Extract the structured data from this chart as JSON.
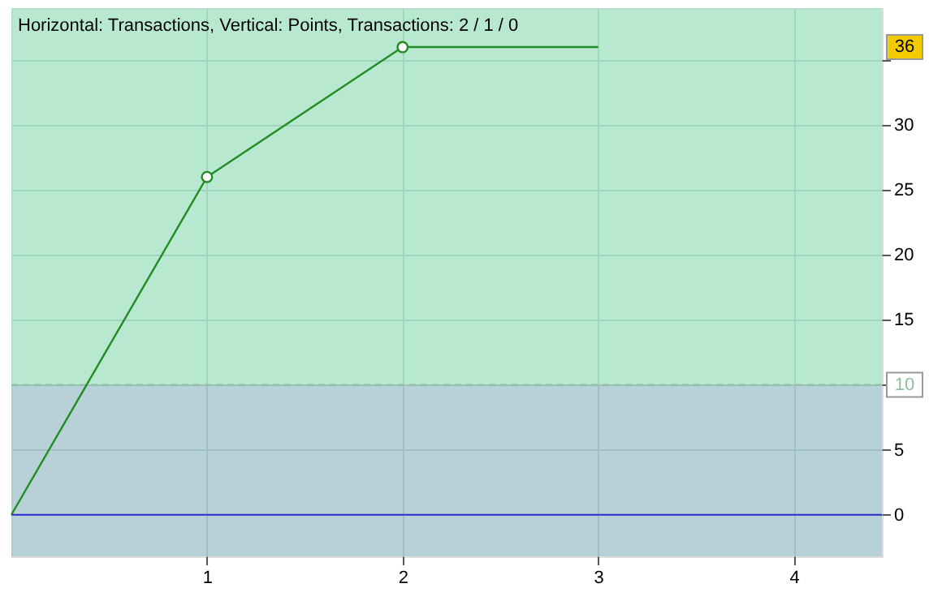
{
  "chart_data": {
    "type": "line",
    "title": "Horizontal: Transactions, Vertical: Points, Transactions: 2 / 1 / 0",
    "x": [
      0,
      1,
      2,
      3
    ],
    "series": [
      {
        "type": "line",
        "color": "#228b22",
        "values": [
          0,
          26,
          36,
          36
        ],
        "marker": "none"
      },
      {
        "type": "scatter",
        "color": "#228b22",
        "x": [
          1,
          2
        ],
        "values": [
          26,
          36
        ],
        "marker": "circle"
      }
    ],
    "xlim": [
      0,
      4.45
    ],
    "xticks": [
      1,
      2,
      3,
      4
    ],
    "ylim": [
      -3.2,
      39
    ],
    "yticks": [
      0,
      5,
      10,
      15,
      20,
      25,
      30,
      {
        "value": 35,
        "label": null
      }
    ],
    "annotations": [
      {
        "text": "36",
        "y": 36
      }
    ],
    "grid": true,
    "bands": [
      {
        "axis": "y",
        "from": 10,
        "to": 39,
        "color": "#a8e2c6"
      },
      {
        "axis": "y",
        "from": -3.2,
        "to": 10,
        "color": "#a6c5d0"
      }
    ],
    "ref_lines": [
      {
        "axis": "y",
        "value": 0,
        "color": "#2a2ad0",
        "line_style": "solid"
      },
      {
        "axis": "y",
        "value": 10,
        "label": "10",
        "color": "#8fbf9f",
        "line_style": "dashed"
      }
    ]
  }
}
